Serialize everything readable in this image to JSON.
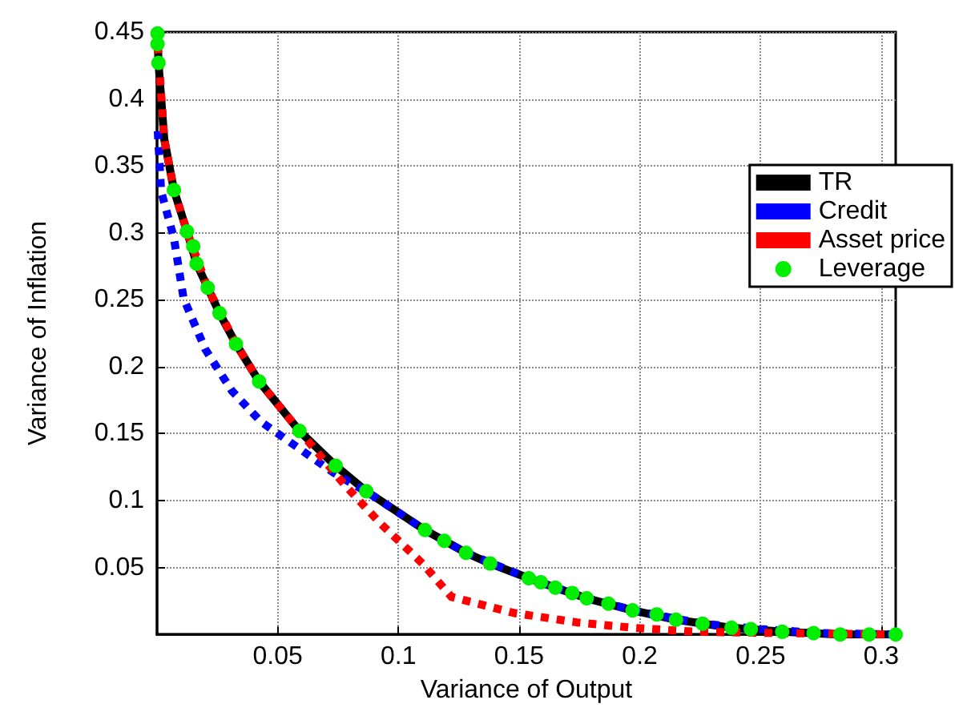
{
  "chart_data": {
    "type": "line",
    "xlabel": "Variance of Output",
    "ylabel": "Variance of Inflation",
    "xlim": [
      0,
      0.306
    ],
    "ylim": [
      0,
      0.45
    ],
    "xticks": [
      0.05,
      0.1,
      0.15,
      0.2,
      0.25,
      0.3
    ],
    "yticks": [
      0.05,
      0.1,
      0.15,
      0.2,
      0.25,
      0.3,
      0.35,
      0.4,
      0.45
    ],
    "grid": true,
    "legend": "right",
    "series": [
      {
        "name": "TR",
        "color": "#000000",
        "line_style": "solid",
        "x": [
          0.0002,
          0.0006,
          0.003,
          0.007,
          0.0124,
          0.0164,
          0.021,
          0.0259,
          0.0327,
          0.0423,
          0.059,
          0.074,
          0.0867,
          0.111,
          0.128,
          0.138,
          0.154,
          0.165,
          0.178,
          0.197,
          0.215,
          0.238,
          0.259,
          0.283,
          0.306
        ],
        "values": [
          0.449,
          0.427,
          0.37,
          0.332,
          0.301,
          0.277,
          0.259,
          0.24,
          0.217,
          0.189,
          0.152,
          0.126,
          0.107,
          0.078,
          0.061,
          0.053,
          0.042,
          0.035,
          0.027,
          0.018,
          0.011,
          0.005,
          0.002,
          0,
          0
        ]
      },
      {
        "name": "Credit",
        "color": "#0000ff",
        "line_style": "dotted",
        "x": [
          0.0003,
          0.0017,
          0.007,
          0.011,
          0.02,
          0.031,
          0.043,
          0.058,
          0.073,
          0.09,
          0.111,
          0.128,
          0.154,
          0.178,
          0.2,
          0.226,
          0.25,
          0.275,
          0.306
        ],
        "values": [
          0.376,
          0.331,
          0.296,
          0.251,
          0.213,
          0.182,
          0.159,
          0.14,
          0.121,
          0.103,
          0.078,
          0.061,
          0.042,
          0.027,
          0.017,
          0.008,
          0.004,
          0.001,
          0
        ]
      },
      {
        "name": "Asset price",
        "color": "#ff0000",
        "line_style": "dotted",
        "x": [
          0.0003,
          0.003,
          0.007,
          0.0124,
          0.021,
          0.0327,
          0.0423,
          0.059,
          0.0776,
          0.0925,
          0.11,
          0.122,
          0.148,
          0.174,
          0.197,
          0.223,
          0.26,
          0.306
        ],
        "values": [
          0.44,
          0.37,
          0.332,
          0.301,
          0.259,
          0.217,
          0.189,
          0.152,
          0.112,
          0.083,
          0.053,
          0.028,
          0.016,
          0.009,
          0.005,
          0.002,
          0.001,
          0
        ]
      },
      {
        "name": "Leverage",
        "type": "scatter",
        "color": "#00ee00",
        "marker": "circle",
        "x": [
          0.0002,
          0.0002,
          0.0006,
          0.007,
          0.0124,
          0.015,
          0.0164,
          0.021,
          0.0259,
          0.0327,
          0.0423,
          0.059,
          0.074,
          0.0867,
          0.111,
          0.119,
          0.128,
          0.138,
          0.154,
          0.159,
          0.165,
          0.172,
          0.178,
          0.187,
          0.197,
          0.207,
          0.215,
          0.226,
          0.238,
          0.246,
          0.259,
          0.272,
          0.283,
          0.295,
          0.306
        ],
        "values": [
          0.449,
          0.441,
          0.427,
          0.332,
          0.301,
          0.29,
          0.277,
          0.259,
          0.24,
          0.217,
          0.189,
          0.152,
          0.126,
          0.107,
          0.078,
          0.07,
          0.061,
          0.053,
          0.042,
          0.039,
          0.035,
          0.031,
          0.027,
          0.023,
          0.018,
          0.015,
          0.011,
          0.008,
          0.005,
          0.004,
          0.002,
          0.001,
          0,
          0,
          0
        ]
      }
    ]
  }
}
